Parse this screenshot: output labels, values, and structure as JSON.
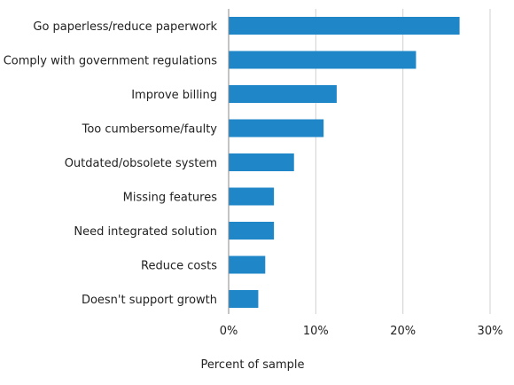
{
  "chart_data": {
    "type": "bar",
    "orientation": "horizontal",
    "categories": [
      "Go paperless/reduce paperwork",
      "Comply with government regulations",
      "Improve billing",
      "Too cumbersome/faulty",
      "Outdated/obsolete system",
      "Missing features",
      "Need integrated solution",
      "Reduce costs",
      "Doesn't support growth"
    ],
    "values": [
      26.5,
      21.5,
      12.4,
      10.9,
      7.5,
      5.2,
      5.2,
      4.2,
      3.4
    ],
    "unit": "%",
    "xlabel": "Percent of sample",
    "ylabel": "",
    "xlim": [
      0,
      30
    ],
    "xticks": [
      0,
      10,
      20,
      30
    ],
    "xtick_labels": [
      "0%",
      "10%",
      "20%",
      "30%"
    ],
    "grid": "vertical",
    "bar_color": "#1f87c8"
  }
}
